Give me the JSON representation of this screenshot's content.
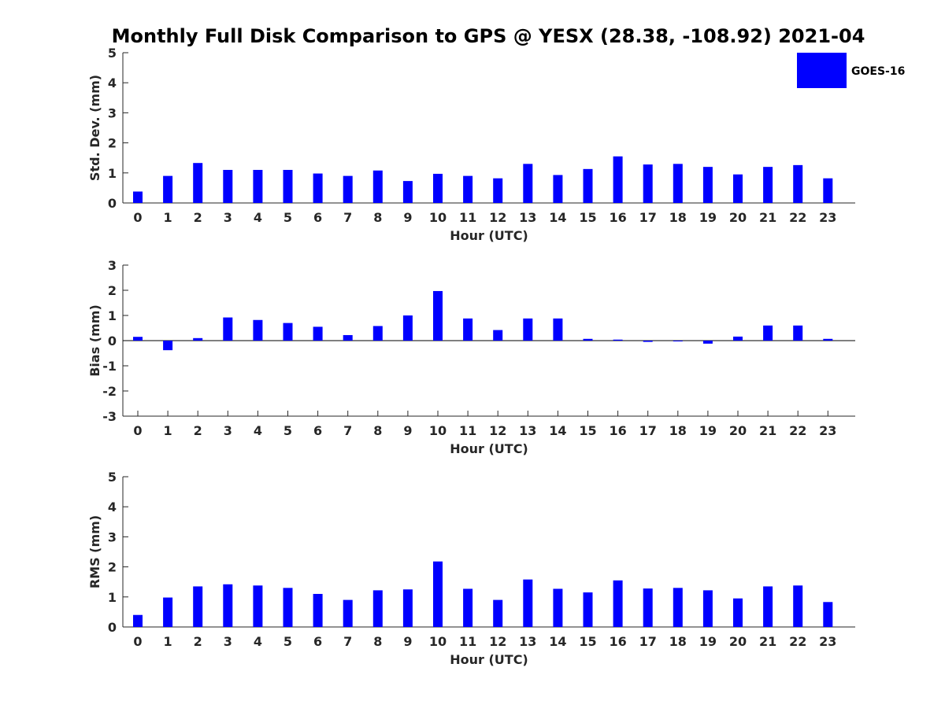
{
  "chart_data": {
    "title": "Monthly Full Disk Comparison to GPS @ YESX (28.38, -108.92) 2021-04",
    "series_name": "GOES-16",
    "series_color": "#0000ff",
    "categories": [
      "0",
      "1",
      "2",
      "3",
      "4",
      "5",
      "6",
      "7",
      "8",
      "9",
      "10",
      "11",
      "12",
      "13",
      "14",
      "15",
      "16",
      "17",
      "18",
      "19",
      "20",
      "21",
      "22",
      "23"
    ],
    "panels": [
      {
        "type": "bar",
        "ylabel": "Std. Dev. (mm)",
        "xlabel": "Hour (UTC)",
        "ylim": [
          0,
          5
        ],
        "yticks": [
          "0",
          "1",
          "2",
          "3",
          "4",
          "5"
        ],
        "values": [
          0.38,
          0.9,
          1.33,
          1.1,
          1.1,
          1.1,
          0.98,
          0.9,
          1.08,
          0.73,
          0.97,
          0.9,
          0.82,
          1.3,
          0.93,
          1.13,
          1.55,
          1.28,
          1.3,
          1.2,
          0.95,
          1.2,
          1.26,
          0.82
        ]
      },
      {
        "type": "bar",
        "ylabel": "Bias (mm)",
        "xlabel": "Hour (UTC)",
        "ylim": [
          -3,
          3
        ],
        "yticks": [
          "-3",
          "-2",
          "-1",
          "0",
          "1",
          "2",
          "3"
        ],
        "values": [
          0.15,
          -0.38,
          0.1,
          0.92,
          0.82,
          0.7,
          0.55,
          0.22,
          0.58,
          1.0,
          1.97,
          0.88,
          0.42,
          0.88,
          0.88,
          0.07,
          0.04,
          -0.05,
          -0.02,
          -0.12,
          0.16,
          0.6,
          0.6,
          0.07
        ]
      },
      {
        "type": "bar",
        "ylabel": "RMS (mm)",
        "xlabel": "Hour (UTC)",
        "ylim": [
          0,
          5
        ],
        "yticks": [
          "0",
          "1",
          "2",
          "3",
          "4",
          "5"
        ],
        "values": [
          0.4,
          0.98,
          1.35,
          1.42,
          1.38,
          1.3,
          1.1,
          0.9,
          1.22,
          1.25,
          2.18,
          1.27,
          0.9,
          1.58,
          1.27,
          1.15,
          1.55,
          1.28,
          1.3,
          1.22,
          0.95,
          1.35,
          1.38,
          0.83
        ]
      }
    ]
  }
}
